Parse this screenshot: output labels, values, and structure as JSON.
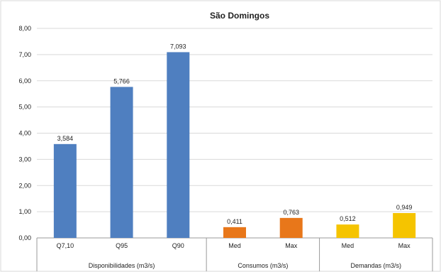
{
  "chart_data": {
    "type": "bar",
    "title": "São Domingos",
    "ylim": [
      0,
      8
    ],
    "y_ticks": [
      "0,00",
      "1,00",
      "2,00",
      "3,00",
      "4,00",
      "5,00",
      "6,00",
      "7,00",
      "8,00"
    ],
    "grid": true,
    "legend": "none",
    "categories": [
      "Q7,10",
      "Q95",
      "Q90",
      "Med",
      "Max",
      "Med",
      "Max"
    ],
    "values": [
      3.584,
      5.766,
      7.093,
      0.411,
      0.763,
      0.512,
      0.949
    ],
    "value_labels": [
      "3,584",
      "5,766",
      "7,093",
      "0,411",
      "0,763",
      "0,512",
      "0,949"
    ],
    "bar_colors": [
      "#4f7fc0",
      "#4f7fc0",
      "#4f7fc0",
      "#e8771a",
      "#e8771a",
      "#f5c400",
      "#f5c400"
    ],
    "groups": [
      {
        "label": "Disponibilidades (m3/s)",
        "start": 0,
        "count": 3
      },
      {
        "label": "Consumos (m3/s)",
        "start": 3,
        "count": 2
      },
      {
        "label": "Demandas (m3/s)",
        "start": 5,
        "count": 2
      }
    ]
  }
}
